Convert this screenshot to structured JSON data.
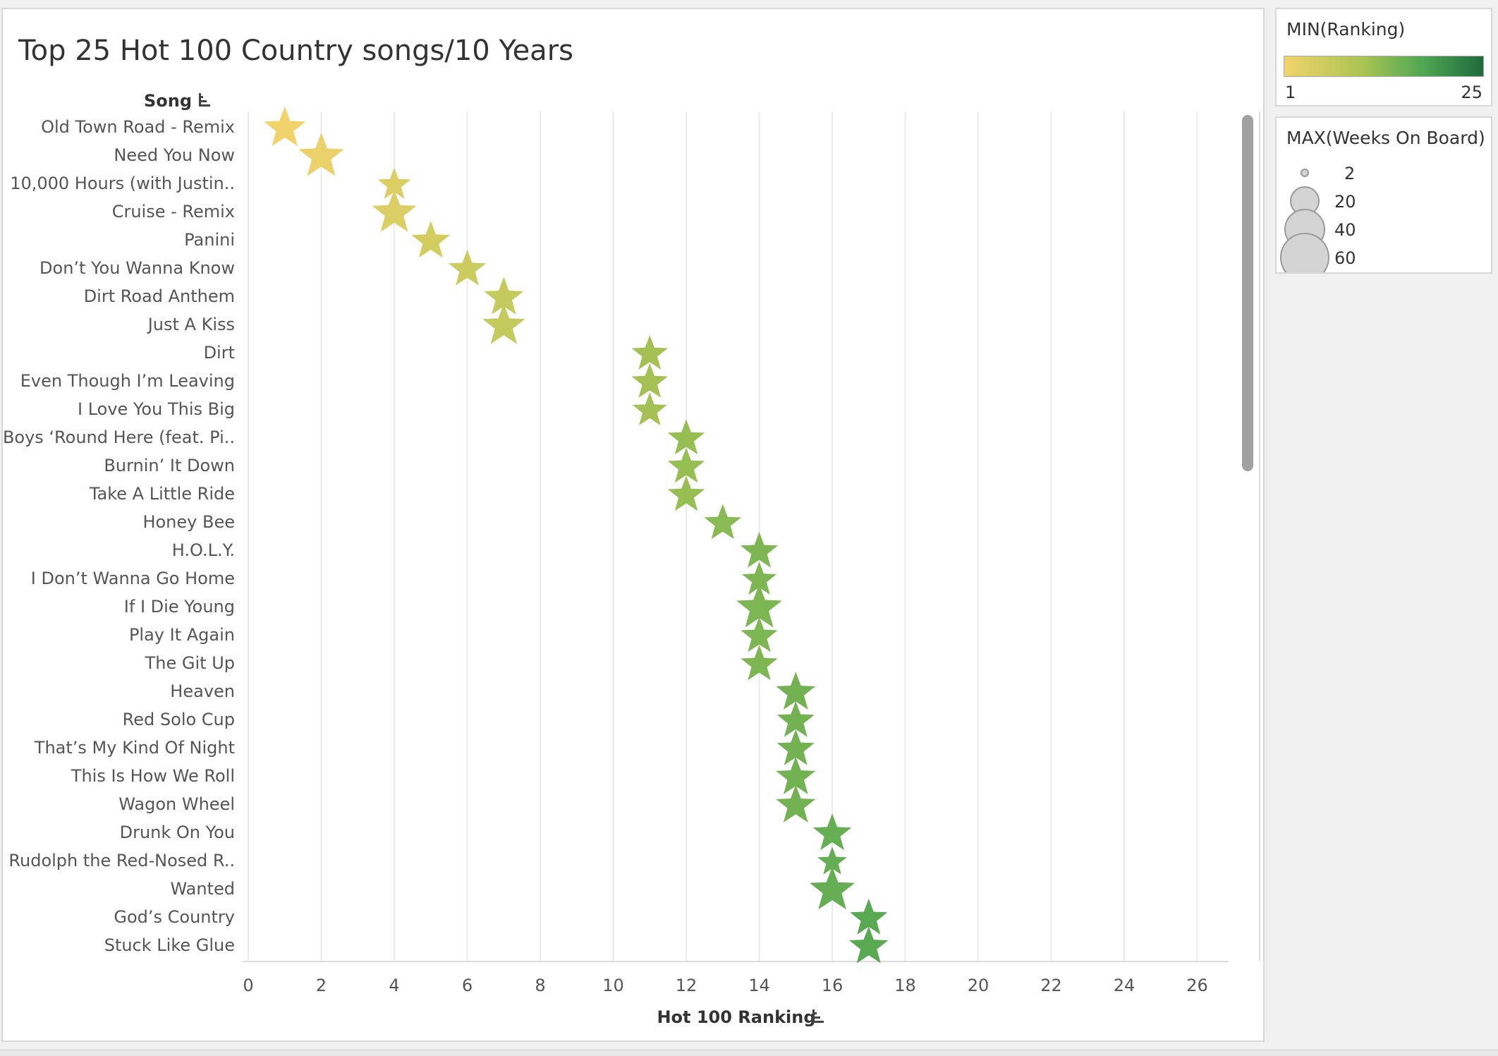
{
  "title": "Top 25 Hot 100 Country songs/10 Years",
  "chart_data": {
    "type": "scatter",
    "title": "Top 25 Hot 100 Country songs/10 Years",
    "ylabel": "Song",
    "xlabel": "Hot 100 Ranking",
    "xlim": [
      0,
      27
    ],
    "x_ticks": [
      0,
      2,
      4,
      6,
      8,
      10,
      12,
      14,
      16,
      18,
      20,
      22,
      24,
      26
    ],
    "marker": "star",
    "grid": true,
    "points": [
      {
        "song": "Old Town Road - Remix",
        "ranking": 1,
        "weeks": 45
      },
      {
        "song": "Need You Now",
        "ranking": 2,
        "weeks": 60
      },
      {
        "song": "10,000 Hours (with Justin..",
        "ranking": 4,
        "weeks": 20
      },
      {
        "song": "Cruise - Remix",
        "ranking": 4,
        "weeks": 55
      },
      {
        "song": "Panini",
        "ranking": 5,
        "weeks": 35
      },
      {
        "song": "Don’t You Wanna Know",
        "ranking": 6,
        "weeks": 32
      },
      {
        "song": "Dirt Road Anthem",
        "ranking": 7,
        "weeks": 38
      },
      {
        "song": "Just A Kiss",
        "ranking": 7,
        "weeks": 48
      },
      {
        "song": "Dirt",
        "ranking": 11,
        "weeks": 28
      },
      {
        "song": "Even Though I’m Leaving",
        "ranking": 11,
        "weeks": 28
      },
      {
        "song": "I Love You This Big",
        "ranking": 11,
        "weeks": 24
      },
      {
        "song": "Boys ‘Round Here (feat. Pi..",
        "ranking": 12,
        "weeks": 30
      },
      {
        "song": "Burnin’ It Down",
        "ranking": 12,
        "weeks": 30
      },
      {
        "song": "Take A Little Ride",
        "ranking": 12,
        "weeks": 30
      },
      {
        "song": "Honey Bee",
        "ranking": 13,
        "weeks": 30
      },
      {
        "song": "H.O.L.Y.",
        "ranking": 14,
        "weeks": 32
      },
      {
        "song": "I Don’t Wanna Go Home",
        "ranking": 14,
        "weeks": 24
      },
      {
        "song": "If I Die Young",
        "ranking": 14,
        "weeks": 60
      },
      {
        "song": "Play It Again",
        "ranking": 14,
        "weeks": 30
      },
      {
        "song": "The Git Up",
        "ranking": 14,
        "weeks": 30
      },
      {
        "song": "Heaven",
        "ranking": 15,
        "weeks": 38
      },
      {
        "song": "Red Solo Cup",
        "ranking": 15,
        "weeks": 32
      },
      {
        "song": "That’s My Kind Of Night",
        "ranking": 15,
        "weeks": 32
      },
      {
        "song": "This Is How We Roll",
        "ranking": 15,
        "weeks": 38
      },
      {
        "song": "Wagon Wheel",
        "ranking": 15,
        "weeks": 38
      },
      {
        "song": "Drunk On You",
        "ranking": 16,
        "weeks": 34
      },
      {
        "song": "Rudolph the Red-Nosed R..",
        "ranking": 16,
        "weeks": 12
      },
      {
        "song": "Wanted",
        "ranking": 16,
        "weeks": 58
      },
      {
        "song": "God’s Country",
        "ranking": 17,
        "weeks": 32
      },
      {
        "song": "Stuck Like Glue",
        "ranking": 17,
        "weeks": 36
      }
    ]
  },
  "legends": {
    "color": {
      "title": "MIN(Ranking)",
      "min_label": "1",
      "max_label": "25",
      "colors": [
        "#f2d36b",
        "#a8c453",
        "#4fa653",
        "#1e6b3c"
      ]
    },
    "size": {
      "title": "MAX(Weeks On Board)",
      "items": [
        "2",
        "20",
        "40",
        "60"
      ]
    }
  }
}
